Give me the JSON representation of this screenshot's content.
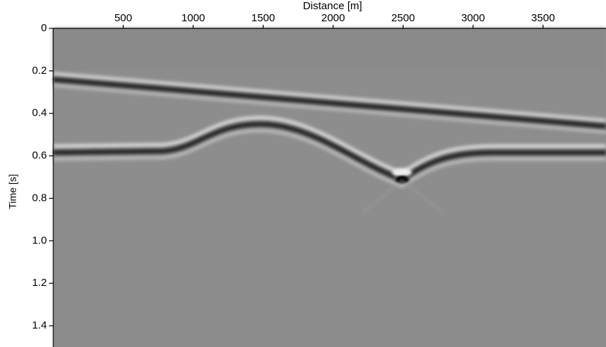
{
  "chart_data": {
    "type": "image",
    "xlabel": "Distance [m]",
    "ylabel": "Time [s]",
    "xlim": [
      0,
      3950
    ],
    "xticks": [
      500,
      1000,
      1500,
      2000,
      2500,
      3000,
      3500
    ],
    "ylim": [
      0,
      1.5
    ],
    "yticks": [
      0,
      0.2,
      0.4,
      0.6,
      0.8,
      {
        "value": 1,
        "label": "1.0"
      },
      {
        "value": 1.2,
        "label": "1.2"
      },
      1.4
    ]
  }
}
